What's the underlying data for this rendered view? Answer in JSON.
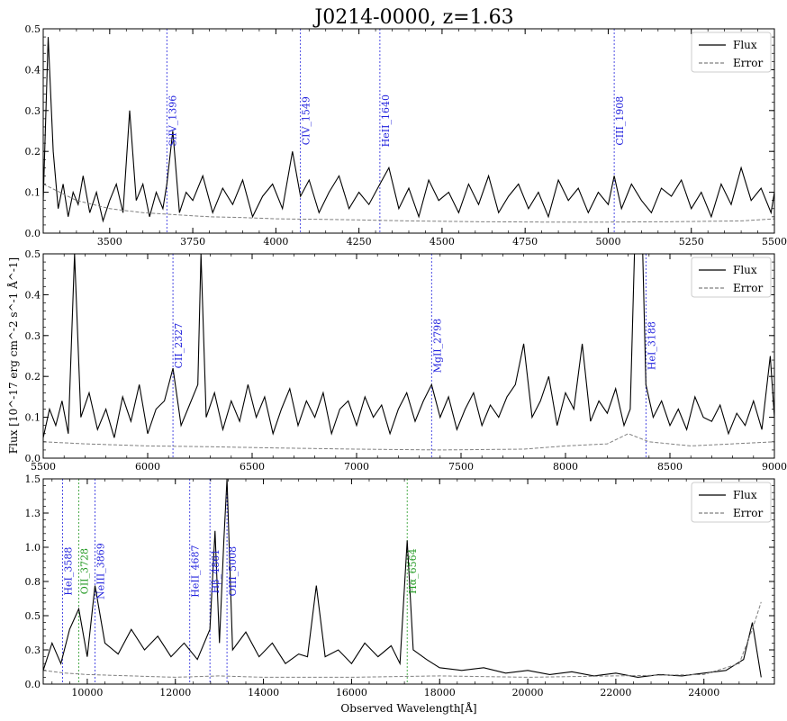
{
  "title": "J0214-0000, z=1.63",
  "ylabel": "Flux [10^-17 erg cm^-2 s^-1 Å^-1]",
  "xlabel": "Observed Wavelength[Å]",
  "colors": {
    "flux": "#000000",
    "error": "#808080",
    "line_blue": "#2222dd",
    "line_green": "#229922"
  },
  "chart_data": [
    {
      "type": "line",
      "xlim": [
        3300,
        5500
      ],
      "ylim": [
        0,
        0.5
      ],
      "xticks": [
        3500,
        3750,
        4000,
        4250,
        4500,
        4750,
        5000,
        5250,
        5500
      ],
      "yticks": [
        0.0,
        0.1,
        0.2,
        0.3,
        0.4,
        0.5
      ],
      "legend": {
        "entries": [
          "Flux",
          "Error"
        ],
        "position": "top-right"
      },
      "lines": [
        {
          "label": "SiIV_1396",
          "x": 3672,
          "color": "blue"
        },
        {
          "label": "CIV_1549",
          "x": 4074,
          "color": "blue"
        },
        {
          "label": "HeII_1640",
          "x": 4313,
          "color": "blue"
        },
        {
          "label": "CIII_1908",
          "x": 5018,
          "color": "blue"
        }
      ],
      "series": [
        {
          "name": "Flux",
          "style": "solid",
          "x": [
            3300,
            3315,
            3330,
            3345,
            3360,
            3375,
            3390,
            3405,
            3420,
            3440,
            3460,
            3480,
            3500,
            3520,
            3540,
            3560,
            3580,
            3600,
            3620,
            3640,
            3660,
            3672,
            3690,
            3710,
            3730,
            3750,
            3780,
            3810,
            3840,
            3870,
            3900,
            3930,
            3960,
            3990,
            4020,
            4050,
            4074,
            4100,
            4130,
            4160,
            4190,
            4220,
            4250,
            4280,
            4313,
            4340,
            4370,
            4400,
            4430,
            4460,
            4490,
            4520,
            4550,
            4580,
            4610,
            4640,
            4670,
            4700,
            4730,
            4760,
            4790,
            4820,
            4850,
            4880,
            4910,
            4940,
            4970,
            5000,
            5018,
            5040,
            5070,
            5100,
            5130,
            5160,
            5190,
            5220,
            5250,
            5280,
            5310,
            5340,
            5370,
            5400,
            5430,
            5460,
            5490,
            5500
          ],
          "y": [
            0.08,
            0.48,
            0.2,
            0.06,
            0.12,
            0.04,
            0.1,
            0.07,
            0.14,
            0.05,
            0.1,
            0.03,
            0.08,
            0.12,
            0.05,
            0.3,
            0.08,
            0.12,
            0.04,
            0.1,
            0.06,
            0.12,
            0.25,
            0.05,
            0.1,
            0.08,
            0.14,
            0.05,
            0.11,
            0.07,
            0.13,
            0.04,
            0.09,
            0.12,
            0.06,
            0.2,
            0.09,
            0.13,
            0.05,
            0.1,
            0.14,
            0.06,
            0.1,
            0.07,
            0.12,
            0.16,
            0.06,
            0.11,
            0.04,
            0.13,
            0.08,
            0.1,
            0.05,
            0.12,
            0.07,
            0.14,
            0.05,
            0.09,
            0.12,
            0.06,
            0.1,
            0.04,
            0.13,
            0.08,
            0.11,
            0.05,
            0.1,
            0.07,
            0.14,
            0.06,
            0.12,
            0.08,
            0.05,
            0.11,
            0.09,
            0.13,
            0.06,
            0.1,
            0.04,
            0.12,
            0.07,
            0.16,
            0.08,
            0.11,
            0.05,
            0.1
          ]
        },
        {
          "name": "Error",
          "style": "dashed",
          "x": [
            3300,
            3350,
            3400,
            3450,
            3500,
            3600,
            3700,
            3800,
            3900,
            4000,
            4200,
            4400,
            4600,
            4800,
            5000,
            5200,
            5400,
            5500
          ],
          "y": [
            0.12,
            0.1,
            0.08,
            0.07,
            0.06,
            0.05,
            0.045,
            0.04,
            0.038,
            0.035,
            0.033,
            0.03,
            0.028,
            0.027,
            0.027,
            0.028,
            0.03,
            0.035
          ]
        }
      ]
    },
    {
      "type": "line",
      "xlim": [
        5500,
        9000
      ],
      "ylim": [
        0,
        0.5
      ],
      "xticks": [
        5500,
        6000,
        6500,
        7000,
        7500,
        8000,
        8500,
        9000
      ],
      "yticks": [
        0.0,
        0.1,
        0.2,
        0.3,
        0.4,
        0.5
      ],
      "legend": {
        "entries": [
          "Flux",
          "Error"
        ],
        "position": "top-right"
      },
      "lines": [
        {
          "label": "CII_2327",
          "x": 6121,
          "color": "blue"
        },
        {
          "label": "MgII_2798",
          "x": 7359,
          "color": "blue"
        },
        {
          "label": "HeI_3188",
          "x": 8385,
          "color": "blue"
        }
      ],
      "series": [
        {
          "name": "Flux",
          "style": "solid",
          "x": [
            5500,
            5530,
            5560,
            5590,
            5620,
            5650,
            5680,
            5720,
            5760,
            5800,
            5840,
            5880,
            5920,
            5960,
            6000,
            6040,
            6080,
            6121,
            6160,
            6200,
            6240,
            6255,
            6280,
            6320,
            6360,
            6400,
            6440,
            6480,
            6520,
            6560,
            6600,
            6640,
            6680,
            6720,
            6760,
            6800,
            6840,
            6880,
            6920,
            6960,
            7000,
            7040,
            7080,
            7120,
            7160,
            7200,
            7240,
            7280,
            7320,
            7359,
            7400,
            7440,
            7480,
            7520,
            7560,
            7600,
            7640,
            7680,
            7720,
            7760,
            7800,
            7840,
            7880,
            7920,
            7960,
            8000,
            8040,
            8080,
            8120,
            8160,
            8200,
            8240,
            8280,
            8310,
            8330,
            8350,
            8370,
            8385,
            8420,
            8460,
            8500,
            8540,
            8580,
            8620,
            8660,
            8700,
            8740,
            8780,
            8820,
            8860,
            8900,
            8940,
            8980,
            9000
          ],
          "y": [
            0.05,
            0.12,
            0.08,
            0.14,
            0.06,
            0.5,
            0.1,
            0.16,
            0.07,
            0.12,
            0.05,
            0.15,
            0.09,
            0.18,
            0.06,
            0.12,
            0.14,
            0.22,
            0.08,
            0.13,
            0.18,
            0.5,
            0.1,
            0.16,
            0.07,
            0.14,
            0.09,
            0.18,
            0.1,
            0.15,
            0.06,
            0.12,
            0.17,
            0.08,
            0.14,
            0.1,
            0.16,
            0.06,
            0.12,
            0.14,
            0.08,
            0.15,
            0.1,
            0.13,
            0.06,
            0.12,
            0.16,
            0.09,
            0.14,
            0.18,
            0.1,
            0.15,
            0.07,
            0.12,
            0.16,
            0.08,
            0.13,
            0.1,
            0.15,
            0.18,
            0.28,
            0.1,
            0.14,
            0.2,
            0.08,
            0.16,
            0.12,
            0.28,
            0.09,
            0.14,
            0.11,
            0.17,
            0.08,
            0.12,
            0.5,
            0.5,
            0.5,
            0.18,
            0.1,
            0.14,
            0.08,
            0.12,
            0.07,
            0.15,
            0.1,
            0.09,
            0.13,
            0.06,
            0.11,
            0.08,
            0.14,
            0.07,
            0.25,
            0.1
          ]
        },
        {
          "name": "Error",
          "style": "dashed",
          "x": [
            5500,
            5700,
            6000,
            6300,
            6600,
            7000,
            7400,
            7800,
            8000,
            8200,
            8300,
            8400,
            8600,
            8800,
            9000
          ],
          "y": [
            0.04,
            0.035,
            0.03,
            0.028,
            0.025,
            0.022,
            0.02,
            0.022,
            0.03,
            0.035,
            0.06,
            0.04,
            0.03,
            0.035,
            0.04
          ]
        }
      ]
    },
    {
      "type": "line",
      "xlim": [
        9000,
        25600
      ],
      "ylim": [
        0,
        1.5
      ],
      "xticks": [
        10000,
        12000,
        14000,
        16000,
        18000,
        20000,
        22000,
        24000
      ],
      "yticks": [
        0.0,
        0.25,
        0.5,
        0.75,
        1.0,
        1.25,
        1.5
      ],
      "legend": {
        "entries": [
          "Flux",
          "Error"
        ],
        "position": "top-right"
      },
      "lines": [
        {
          "label": "HeI_3588",
          "x": 9440,
          "color": "blue"
        },
        {
          "label": "OII_3728",
          "x": 9807,
          "color": "green"
        },
        {
          "label": "NeIII_3869",
          "x": 10175,
          "color": "blue"
        },
        {
          "label": "HeII_4687",
          "x": 12327,
          "color": "blue"
        },
        {
          "label": "Hβ_4861",
          "x": 12785,
          "color": "blue"
        },
        {
          "label": "OIII_5008",
          "x": 13172,
          "color": "blue"
        },
        {
          "label": "Hα_6564",
          "x": 17263,
          "color": "green"
        }
      ],
      "series": [
        {
          "name": "Flux",
          "style": "solid",
          "x": [
            9000,
            9200,
            9400,
            9600,
            9807,
            10000,
            10175,
            10400,
            10700,
            11000,
            11300,
            11600,
            11900,
            12200,
            12500,
            12785,
            12900,
            13000,
            13100,
            13172,
            13300,
            13600,
            13900,
            14200,
            14500,
            14800,
            15000,
            15200,
            15400,
            15700,
            16000,
            16300,
            16600,
            16900,
            17100,
            17263,
            17400,
            17700,
            18000,
            18500,
            19000,
            19500,
            20000,
            20500,
            21000,
            21500,
            22000,
            22500,
            23000,
            23500,
            24000,
            24500,
            24900,
            25100,
            25300
          ],
          "y": [
            0.1,
            0.3,
            0.15,
            0.4,
            0.55,
            0.2,
            0.72,
            0.3,
            0.22,
            0.4,
            0.25,
            0.35,
            0.2,
            0.3,
            0.18,
            0.4,
            1.12,
            0.3,
            1.05,
            1.5,
            0.25,
            0.38,
            0.2,
            0.3,
            0.15,
            0.22,
            0.2,
            0.72,
            0.2,
            0.25,
            0.15,
            0.3,
            0.2,
            0.28,
            0.15,
            1.05,
            0.25,
            0.18,
            0.12,
            0.1,
            0.12,
            0.08,
            0.1,
            0.07,
            0.09,
            0.06,
            0.08,
            0.05,
            0.07,
            0.06,
            0.08,
            0.1,
            0.18,
            0.45,
            0.05
          ]
        },
        {
          "name": "Error",
          "style": "dashed",
          "x": [
            9000,
            9500,
            10000,
            11000,
            12000,
            13000,
            14000,
            16000,
            18000,
            20000,
            22000,
            24000,
            24800,
            25100,
            25300
          ],
          "y": [
            0.1,
            0.08,
            0.07,
            0.06,
            0.05,
            0.06,
            0.05,
            0.05,
            0.06,
            0.05,
            0.06,
            0.07,
            0.15,
            0.4,
            0.6
          ]
        }
      ]
    }
  ]
}
